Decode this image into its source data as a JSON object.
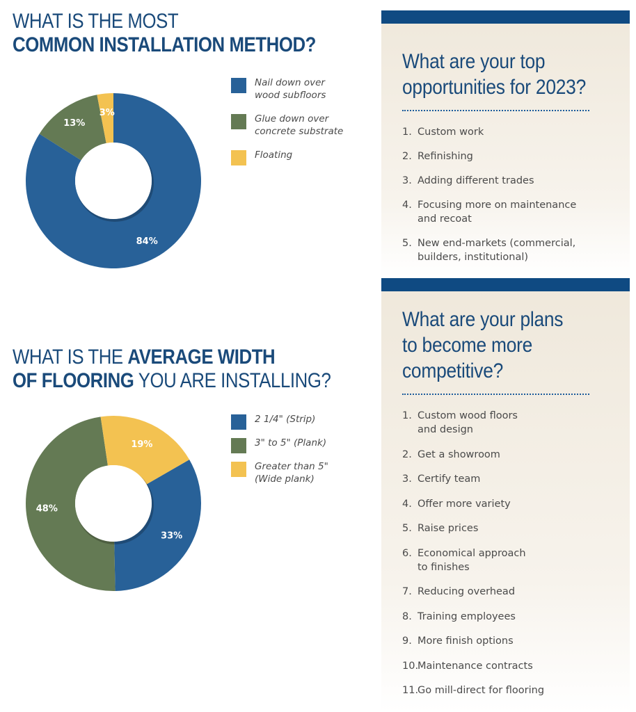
{
  "chart_data": [
    {
      "type": "pie",
      "title_lines": [
        "WHAT IS THE MOST",
        "COMMON INSTALLATION METHOD?"
      ],
      "categories": [
        "Nail down over wood subfloors",
        "Glue down over concrete substrate",
        "Floating"
      ],
      "legend_labels": [
        "Nail down over\nwood subfloors",
        "Glue down over\nconcrete substrate",
        "Floating"
      ],
      "values": [
        84,
        13,
        3
      ],
      "value_labels": [
        "84%",
        "13%",
        "3%"
      ],
      "colors": [
        "#286198",
        "#647a54",
        "#f3c251"
      ],
      "legend_placement": "right"
    },
    {
      "type": "pie",
      "title_lines": [
        "WHAT IS THE AVERAGE WIDTH",
        "OF FLOORING YOU ARE INSTALLING?"
      ],
      "categories": [
        "2 1/4\" (Strip)",
        "3\" to 5\" (Plank)",
        "Greater than 5\" (Wide plank)"
      ],
      "legend_labels": [
        "2 1/4\" (Strip)",
        "3\" to 5\" (Plank)",
        "Greater than 5\"\n(Wide plank)"
      ],
      "values": [
        33,
        48,
        19
      ],
      "value_labels": [
        "33%",
        "48%",
        "19%"
      ],
      "colors": [
        "#286198",
        "#647a54",
        "#f3c251"
      ],
      "legend_placement": "right"
    }
  ],
  "titles": {
    "t1_line1": "WHAT IS THE MOST",
    "t1_line2": "COMMON INSTALLATION METHOD?",
    "t2_line1_a": "WHAT IS THE ",
    "t2_line1_b": "AVERAGE WIDTH",
    "t2_line2_a": "OF FLOORING",
    "t2_line2_b": " YOU ARE INSTALLING?"
  },
  "panels": [
    {
      "heading_lines": [
        "What are your top",
        "opportunities for 2023?"
      ],
      "items": [
        {
          "num": "1.",
          "text": "Custom work"
        },
        {
          "num": "2.",
          "text": "Refinishing"
        },
        {
          "num": "3.",
          "text": "Adding different trades"
        },
        {
          "num": "4.",
          "text": "Focusing more on maintenance\nand recoat"
        },
        {
          "num": "5.",
          "text": "New end-markets (commercial,\nbuilders, institutional)"
        }
      ]
    },
    {
      "heading_lines": [
        "What are your plans",
        "to become more",
        "competitive?"
      ],
      "items": [
        {
          "num": "1.",
          "text": "Custom wood floors\nand design"
        },
        {
          "num": "2.",
          "text": "Get a showroom"
        },
        {
          "num": "3.",
          "text": "Certify team"
        },
        {
          "num": "4.",
          "text": "Offer more variety"
        },
        {
          "num": "5.",
          "text": "Raise prices"
        },
        {
          "num": "6.",
          "text": "Economical approach\nto finishes"
        },
        {
          "num": "7.",
          "text": "Reducing overhead"
        },
        {
          "num": "8.",
          "text": "Training employees"
        },
        {
          "num": "9.",
          "text": "More finish options"
        },
        {
          "num": "10.",
          "text": "Maintenance contracts"
        },
        {
          "num": "11.",
          "text": "Go mill-direct for flooring"
        }
      ]
    }
  ],
  "colors": {
    "title": "#1a4a7a",
    "panel_bar": "#0f4a82",
    "panel_bg": "#efe8db",
    "body_text": "#4a4a4a"
  }
}
